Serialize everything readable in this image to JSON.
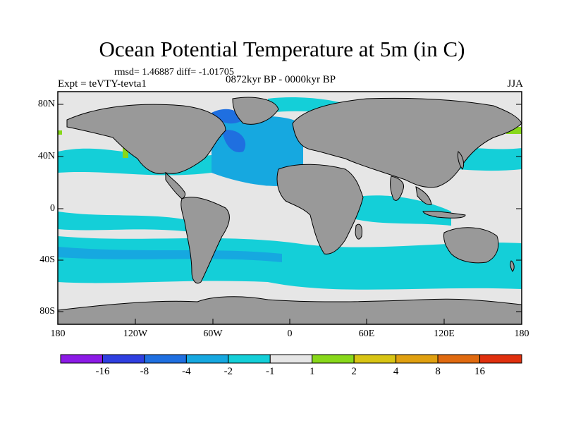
{
  "title": "Ocean Potential Temperature at 5m (in C)",
  "stats": "rmsd= 1.46887 diff= -1.01705",
  "period": "0872kyr BP - 0000kyr BP",
  "experiment": "Expt = teVTY-tevta1",
  "season": "JJA",
  "lat_labels": [
    "80N",
    "40N",
    "0",
    "40S",
    "80S"
  ],
  "lon_labels": [
    "180",
    "120W",
    "60W",
    "0",
    "60E",
    "120E",
    "180"
  ],
  "colorbar": {
    "labels": [
      "-16",
      "-8",
      "-4",
      "-2",
      "-1",
      "1",
      "2",
      "4",
      "8",
      "16"
    ],
    "colors": [
      "#8c1ae6",
      "#2f3fe0",
      "#1f6fe0",
      "#16a8e0",
      "#14cfd8",
      "#e6e6e6",
      "#88d81a",
      "#d8c414",
      "#e0a010",
      "#e06a10",
      "#e0300e"
    ]
  },
  "map_colors": {
    "land": "#999999",
    "neutral": "#e6e6e6",
    "cool1": "#14cfd8",
    "cool2": "#16a8e0",
    "cool3": "#1f6fe0",
    "warm1": "#88d81a",
    "warm2": "#d8c414"
  }
}
